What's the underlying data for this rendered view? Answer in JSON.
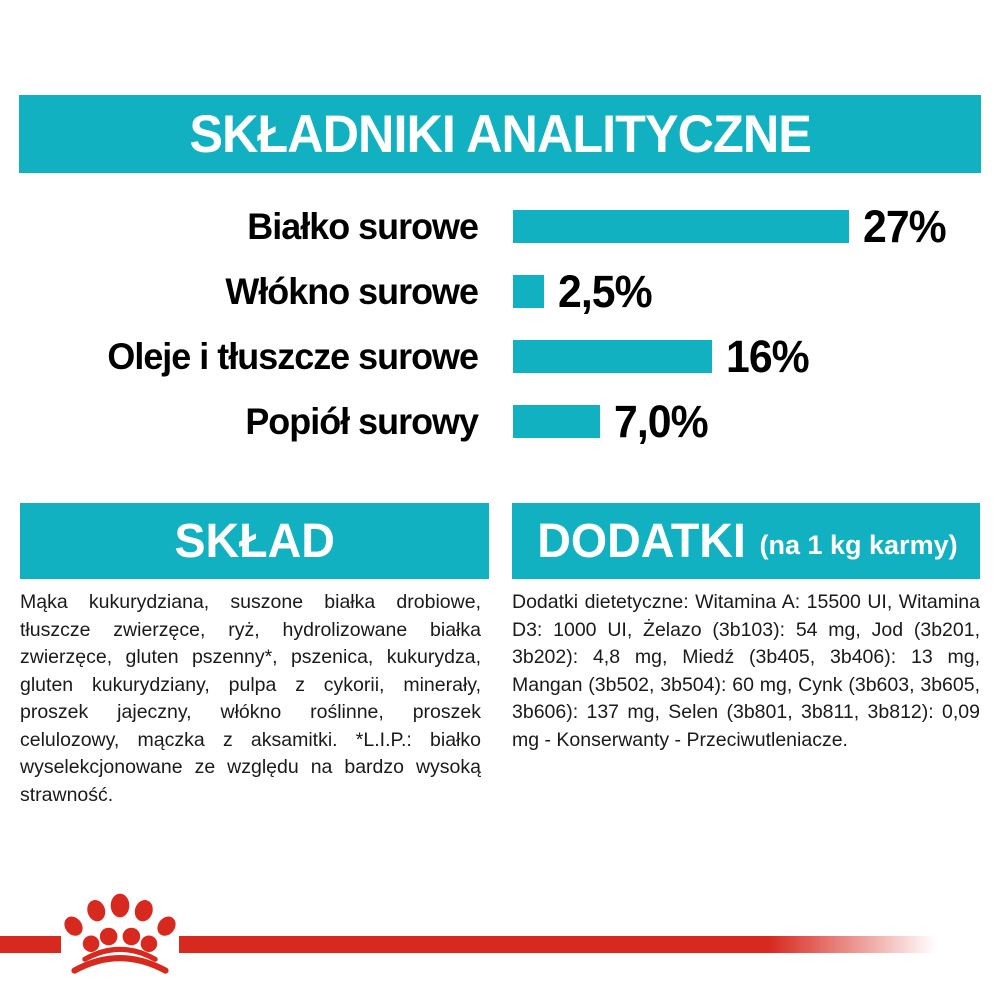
{
  "colors": {
    "teal": "#12b1c2",
    "red": "#d8291f",
    "text": "#000000",
    "body_text": "#1a1a1a",
    "header_text": "#ffffff"
  },
  "analytical": {
    "title": "SKŁADNIKI ANALITYCZNE",
    "max_percent": 27,
    "rows": [
      {
        "label": "Białko surowe",
        "value": "27%",
        "percent": 27
      },
      {
        "label": "Włókno surowe",
        "value": "2,5%",
        "percent": 2.5
      },
      {
        "label": "Oleje i tłuszcze surowe",
        "value": "16%",
        "percent": 16
      },
      {
        "label": "Popiół surowy",
        "value": "7,0%",
        "percent": 7.0
      }
    ]
  },
  "chart_data": {
    "type": "bar",
    "orientation": "horizontal",
    "title": "SKŁADNIKI ANALITYCZNE",
    "categories": [
      "Białko surowe",
      "Włókno surowe",
      "Oleje i tłuszcze surowe",
      "Popiół surowy"
    ],
    "values": [
      27,
      2.5,
      16,
      7.0
    ],
    "value_labels": [
      "27%",
      "2,5%",
      "16%",
      "7,0%"
    ],
    "unit": "%",
    "xlim": [
      0,
      27
    ],
    "grid": false,
    "bar_color": "#12b1c2",
    "legend": false
  },
  "sklad": {
    "title": "SKŁAD",
    "body": "Mąka kukurydziana, suszone białka drobiowe, tłuszcze zwierzęce, ryż, hydrolizowane białka zwierzęce, gluten pszenny*, pszenica, kukurydza, gluten kukurydziany, pulpa z cykorii, minerały, proszek jajeczny, włókno roślinne, proszek celulozowy, mączka z aksamitki. *L.I.P.: białko wyselekcjonowane ze względu na bardzo wysoką strawność."
  },
  "dodatki": {
    "title": "DODATKI",
    "subtitle": "(na 1 kg karmy)",
    "body": "Dodatki dietetyczne: Witamina A: 15500 UI, Witamina D3: 1000 UI, Żelazo (3b103): 54 mg, Jod (3b201, 3b202): 4,8 mg, Miedź (3b405, 3b406): 13 mg, Mangan (3b502, 3b504): 60 mg, Cynk (3b603, 3b605, 3b606): 137 mg, Selen (3b801, 3b811, 3b812): 0,09 mg - Konserwanty - Przeciwutleniacze."
  },
  "footer": {
    "logo": "royal-canin-crown-icon"
  }
}
